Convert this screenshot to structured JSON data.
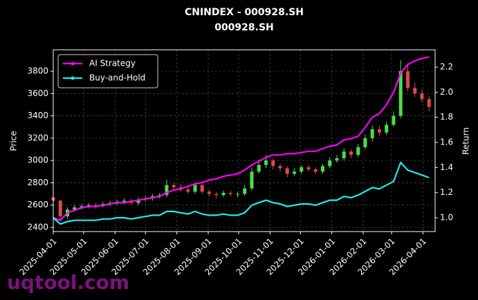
{
  "chart_data": {
    "type": "candlestick",
    "title": "CNINDEX - 000928.SH",
    "subtitle": "000928.SH",
    "y_label": "Price",
    "y2_label": "Return",
    "watermark": "uqtool.com",
    "xlim": [
      "2025-04-01",
      "2026-04-13"
    ],
    "xticks": [
      "2025-04-01",
      "2025-05-01",
      "2025-06-01",
      "2025-07-01",
      "2025-08-01",
      "2025-09-01",
      "2025-10-01",
      "2025-11-01",
      "2025-12-01",
      "2026-01-01",
      "2026-02-01",
      "2026-03-01",
      "2026-04-01"
    ],
    "ylim": [
      2363,
      3992
    ],
    "yticks": [
      2400,
      2600,
      2800,
      3000,
      3200,
      3400,
      3600,
      3800
    ],
    "y2lim": [
      0.89,
      2.338
    ],
    "y2ticks": [
      {
        "value": 1.0,
        "label": "1.0"
      },
      {
        "value": 1.2,
        "label": "1.2"
      },
      {
        "value": 1.4,
        "label": "1.4"
      },
      {
        "value": 1.6,
        "label": "1.6"
      },
      {
        "value": 1.8,
        "label": "1.8"
      },
      {
        "value": 2.0,
        "label": "2.0"
      },
      {
        "value": 2.2,
        "label": "2.2"
      }
    ],
    "grid": true,
    "legend": "upper left",
    "up_color": "#4cdc4c",
    "down_color": "#e04848",
    "x": [
      "2025-04-01",
      "2025-04-08",
      "2025-04-15",
      "2025-04-22",
      "2025-04-29",
      "2025-05-06",
      "2025-05-13",
      "2025-05-20",
      "2025-05-27",
      "2025-06-03",
      "2025-06-10",
      "2025-06-17",
      "2025-06-24",
      "2025-07-01",
      "2025-07-08",
      "2025-07-15",
      "2025-07-22",
      "2025-07-29",
      "2025-08-05",
      "2025-08-12",
      "2025-08-19",
      "2025-08-26",
      "2025-09-02",
      "2025-09-09",
      "2025-09-16",
      "2025-09-23",
      "2025-09-30",
      "2025-10-07",
      "2025-10-14",
      "2025-10-21",
      "2025-10-28",
      "2025-11-04",
      "2025-11-11",
      "2025-11-18",
      "2025-11-25",
      "2025-12-02",
      "2025-12-09",
      "2025-12-16",
      "2025-12-23",
      "2025-12-30",
      "2026-01-06",
      "2026-01-13",
      "2026-01-20",
      "2026-01-27",
      "2026-02-03",
      "2026-02-10",
      "2026-02-17",
      "2026-02-24",
      "2026-03-03",
      "2026-03-10",
      "2026-03-17",
      "2026-03-24",
      "2026-03-31",
      "2026-04-07"
    ],
    "candles": {
      "open": [
        2670,
        2640,
        2500,
        2560,
        2580,
        2590,
        2600,
        2590,
        2610,
        2620,
        2630,
        2640,
        2620,
        2650,
        2660,
        2680,
        2690,
        2780,
        2760,
        2740,
        2720,
        2780,
        2720,
        2700,
        2690,
        2710,
        2700,
        2700,
        2750,
        2900,
        2960,
        3000,
        2950,
        2930,
        2880,
        2900,
        2940,
        2920,
        2900,
        2950,
        3000,
        3020,
        3080,
        3050,
        3120,
        3200,
        3280,
        3250,
        3320,
        3400,
        3800,
        3650,
        3600,
        3550
      ],
      "high": [
        2690,
        2650,
        2580,
        2600,
        2610,
        2620,
        2620,
        2630,
        2640,
        2650,
        2660,
        2660,
        2670,
        2680,
        2700,
        2710,
        2830,
        2800,
        2790,
        2770,
        2800,
        2790,
        2740,
        2720,
        2730,
        2730,
        2720,
        2780,
        2940,
        3010,
        3050,
        3020,
        2970,
        2950,
        2930,
        2960,
        2960,
        2940,
        2970,
        3030,
        3050,
        3110,
        3100,
        3150,
        3230,
        3310,
        3310,
        3350,
        3440,
        3900,
        3850,
        3700,
        3640,
        3580
      ],
      "low": [
        2630,
        2460,
        2480,
        2540,
        2560,
        2570,
        2570,
        2580,
        2590,
        2600,
        2610,
        2600,
        2600,
        2630,
        2640,
        2660,
        2670,
        2740,
        2720,
        2700,
        2700,
        2700,
        2680,
        2660,
        2670,
        2680,
        2670,
        2680,
        2730,
        2880,
        2930,
        2920,
        2900,
        2850,
        2860,
        2880,
        2900,
        2880,
        2880,
        2930,
        2980,
        3000,
        3020,
        3030,
        3100,
        3170,
        3220,
        3230,
        3300,
        3380,
        3620,
        3570,
        3520,
        3440
      ],
      "close": [
        2640,
        2500,
        2560,
        2580,
        2590,
        2600,
        2590,
        2610,
        2620,
        2630,
        2640,
        2620,
        2650,
        2660,
        2680,
        2690,
        2780,
        2760,
        2740,
        2720,
        2780,
        2720,
        2700,
        2690,
        2710,
        2700,
        2700,
        2750,
        2900,
        2960,
        3000,
        2950,
        2930,
        2880,
        2900,
        2940,
        2920,
        2900,
        2950,
        3000,
        3020,
        3080,
        3050,
        3120,
        3200,
        3280,
        3250,
        3320,
        3400,
        3800,
        3650,
        3600,
        3550,
        3480
      ]
    },
    "series": [
      {
        "name": "AI Strategy",
        "color": "#ff00ff",
        "axis": "y2",
        "values": [
          1.0,
          0.98,
          1.04,
          1.06,
          1.08,
          1.09,
          1.09,
          1.1,
          1.11,
          1.12,
          1.12,
          1.13,
          1.14,
          1.15,
          1.16,
          1.17,
          1.2,
          1.22,
          1.23,
          1.25,
          1.27,
          1.28,
          1.3,
          1.31,
          1.33,
          1.34,
          1.35,
          1.38,
          1.42,
          1.45,
          1.48,
          1.5,
          1.5,
          1.51,
          1.51,
          1.52,
          1.53,
          1.53,
          1.55,
          1.57,
          1.58,
          1.62,
          1.63,
          1.65,
          1.72,
          1.8,
          1.83,
          1.9,
          2.0,
          2.15,
          2.22,
          2.25,
          2.27,
          2.28
        ]
      },
      {
        "name": "Buy-and-Hold",
        "color": "#19f0f0",
        "axis": "y2",
        "values": [
          1.0,
          0.95,
          0.97,
          0.98,
          0.98,
          0.98,
          0.98,
          0.99,
          0.99,
          1.0,
          1.0,
          0.99,
          1.0,
          1.01,
          1.02,
          1.02,
          1.05,
          1.05,
          1.04,
          1.03,
          1.05,
          1.03,
          1.02,
          1.02,
          1.03,
          1.02,
          1.02,
          1.04,
          1.1,
          1.12,
          1.14,
          1.12,
          1.11,
          1.09,
          1.1,
          1.11,
          1.11,
          1.1,
          1.12,
          1.14,
          1.14,
          1.17,
          1.16,
          1.18,
          1.21,
          1.24,
          1.23,
          1.26,
          1.29,
          1.44,
          1.38,
          1.36,
          1.34,
          1.32
        ]
      }
    ]
  }
}
